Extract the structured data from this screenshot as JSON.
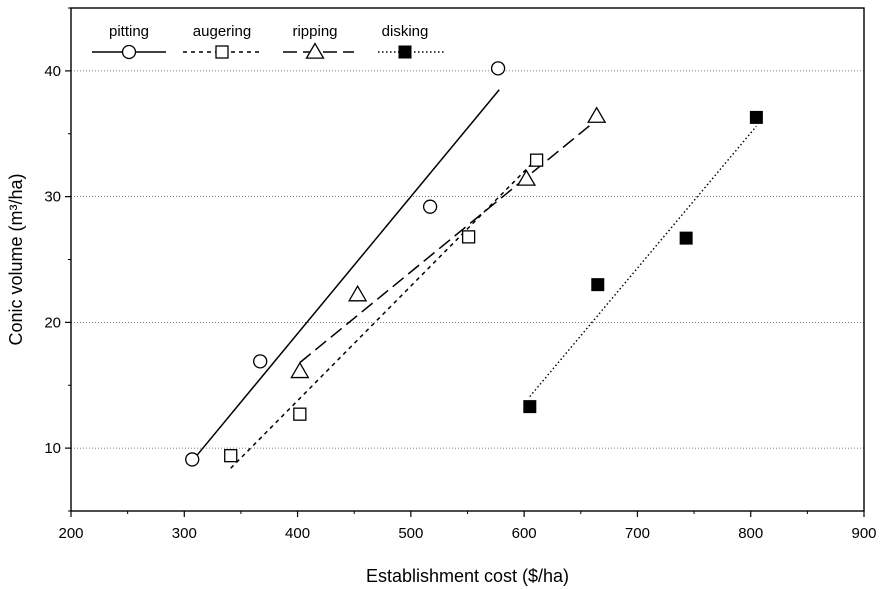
{
  "chart_data": {
    "type": "scatter",
    "xlabel": "Establishment cost ($/ha)",
    "ylabel": "Conic volume (m³/ha)",
    "xlim": [
      200,
      900
    ],
    "ylim": [
      5,
      45
    ],
    "xticks": [
      200,
      300,
      400,
      500,
      600,
      700,
      800,
      900
    ],
    "yticks": [
      10,
      20,
      30,
      40
    ],
    "grid": "horizontal dotted at 10, 20, 30, 40",
    "legend_position": "top, inside plot",
    "series": [
      {
        "name": "pitting",
        "marker": "open-circle",
        "line_style": "solid",
        "x": [
          307,
          367,
          517,
          577
        ],
        "y": [
          9.1,
          16.9,
          29.2,
          40.2
        ],
        "fit": {
          "x": [
            310,
            578
          ],
          "y": [
            9.3,
            38.5
          ]
        }
      },
      {
        "name": "augering",
        "marker": "open-square",
        "line_style": "short-dash",
        "x": [
          341,
          402,
          551,
          611
        ],
        "y": [
          9.4,
          12.7,
          26.8,
          32.9
        ],
        "fit": {
          "x": [
            341,
            611
          ],
          "y": [
            8.4,
            33.0
          ]
        }
      },
      {
        "name": "ripping",
        "marker": "open-triangle",
        "line_style": "long-dash",
        "x": [
          402,
          453,
          602,
          664
        ],
        "y": [
          16.1,
          22.2,
          31.4,
          36.4
        ],
        "fit": {
          "x": [
            402,
            664
          ],
          "y": [
            16.8,
            36.1
          ]
        }
      },
      {
        "name": "disking",
        "marker": "filled-square",
        "line_style": "dotted",
        "x": [
          605,
          665,
          743,
          805
        ],
        "y": [
          13.3,
          23.0,
          26.7,
          36.3
        ],
        "fit": {
          "x": [
            605,
            805
          ],
          "y": [
            14.1,
            35.6
          ]
        }
      }
    ]
  },
  "colors": {
    "ink": "#000000",
    "grid": "#555555",
    "background": "#ffffff"
  }
}
